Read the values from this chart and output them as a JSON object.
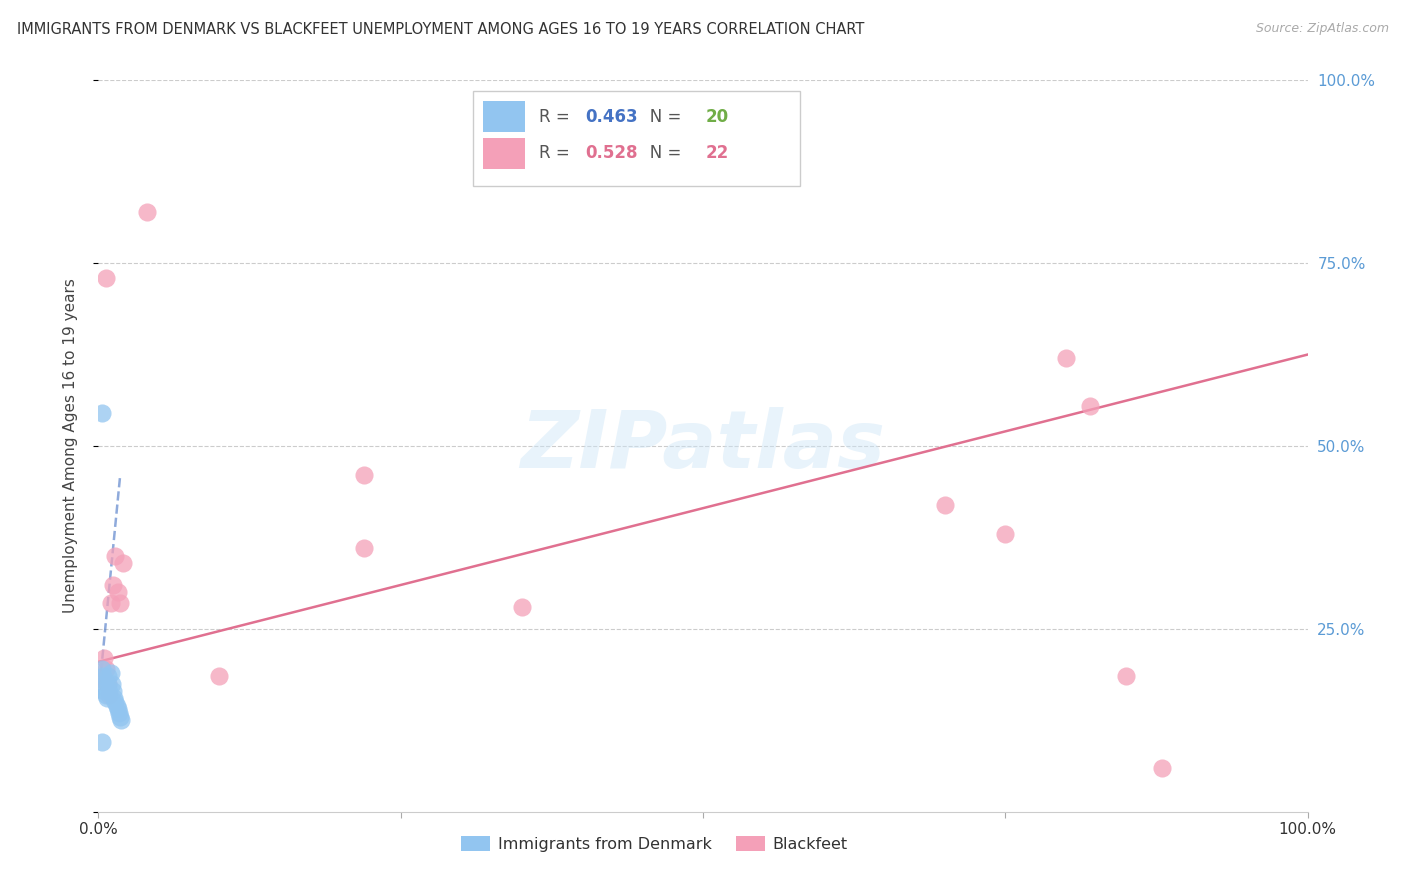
{
  "title": "IMMIGRANTS FROM DENMARK VS BLACKFEET UNEMPLOYMENT AMONG AGES 16 TO 19 YEARS CORRELATION CHART",
  "source": "Source: ZipAtlas.com",
  "ylabel": "Unemployment Among Ages 16 to 19 years",
  "xlim": [
    0,
    1
  ],
  "ylim": [
    0,
    1
  ],
  "yticks": [
    0,
    0.25,
    0.5,
    0.75,
    1.0
  ],
  "xticks": [
    0,
    0.25,
    0.5,
    0.75,
    1.0
  ],
  "denmark_R": 0.463,
  "denmark_N": 20,
  "blackfeet_R": 0.528,
  "blackfeet_N": 22,
  "legend_label_denmark": "Immigrants from Denmark",
  "legend_label_blackfeet": "Blackfeet",
  "watermark": "ZIPatlas",
  "background_color": "#ffffff",
  "denmark_color": "#92c5f0",
  "blackfeet_color": "#f4a0b8",
  "denmark_line_color": "#4472c4",
  "blackfeet_line_color": "#e07090",
  "right_tick_color": "#5b9bd5",
  "denmark_R_color": "#4472c4",
  "denmark_N_color": "#70ad47",
  "blackfeet_R_color": "#e07090",
  "blackfeet_N_color": "#e07090",
  "denmark_points_x": [
    0.003,
    0.004,
    0.005,
    0.005,
    0.006,
    0.007,
    0.008,
    0.008,
    0.009,
    0.01,
    0.011,
    0.012,
    0.013,
    0.014,
    0.015,
    0.016,
    0.017,
    0.018,
    0.019,
    0.003
  ],
  "denmark_points_y": [
    0.195,
    0.185,
    0.175,
    0.165,
    0.16,
    0.155,
    0.175,
    0.185,
    0.165,
    0.19,
    0.175,
    0.165,
    0.155,
    0.15,
    0.145,
    0.14,
    0.135,
    0.13,
    0.125,
    0.095
  ],
  "blackfeet_points_x": [
    0.003,
    0.005,
    0.006,
    0.007,
    0.008,
    0.009,
    0.01,
    0.012,
    0.014,
    0.016,
    0.018,
    0.02,
    0.1,
    0.22,
    0.7,
    0.75,
    0.8,
    0.82,
    0.85,
    0.88,
    0.22,
    0.35
  ],
  "blackfeet_points_y": [
    0.18,
    0.21,
    0.195,
    0.175,
    0.175,
    0.16,
    0.285,
    0.31,
    0.35,
    0.3,
    0.285,
    0.34,
    0.185,
    0.46,
    0.42,
    0.38,
    0.62,
    0.555,
    0.185,
    0.06,
    0.36,
    0.28
  ],
  "blackfeet_outlier_x": [
    0.04
  ],
  "blackfeet_outlier_y": [
    0.82
  ],
  "blue_outlier_x": [
    0.003
  ],
  "blue_outlier_y": [
    0.545
  ],
  "pink_high_x": [
    0.006
  ],
  "pink_high_y": [
    0.73
  ],
  "denmark_line_x0": 0.0,
  "denmark_line_y0": 0.155,
  "denmark_line_x1": 0.018,
  "denmark_line_y1": 0.46,
  "blackfeet_line_x0": 0.0,
  "blackfeet_line_y0": 0.205,
  "blackfeet_line_x1": 1.0,
  "blackfeet_line_y1": 0.625
}
